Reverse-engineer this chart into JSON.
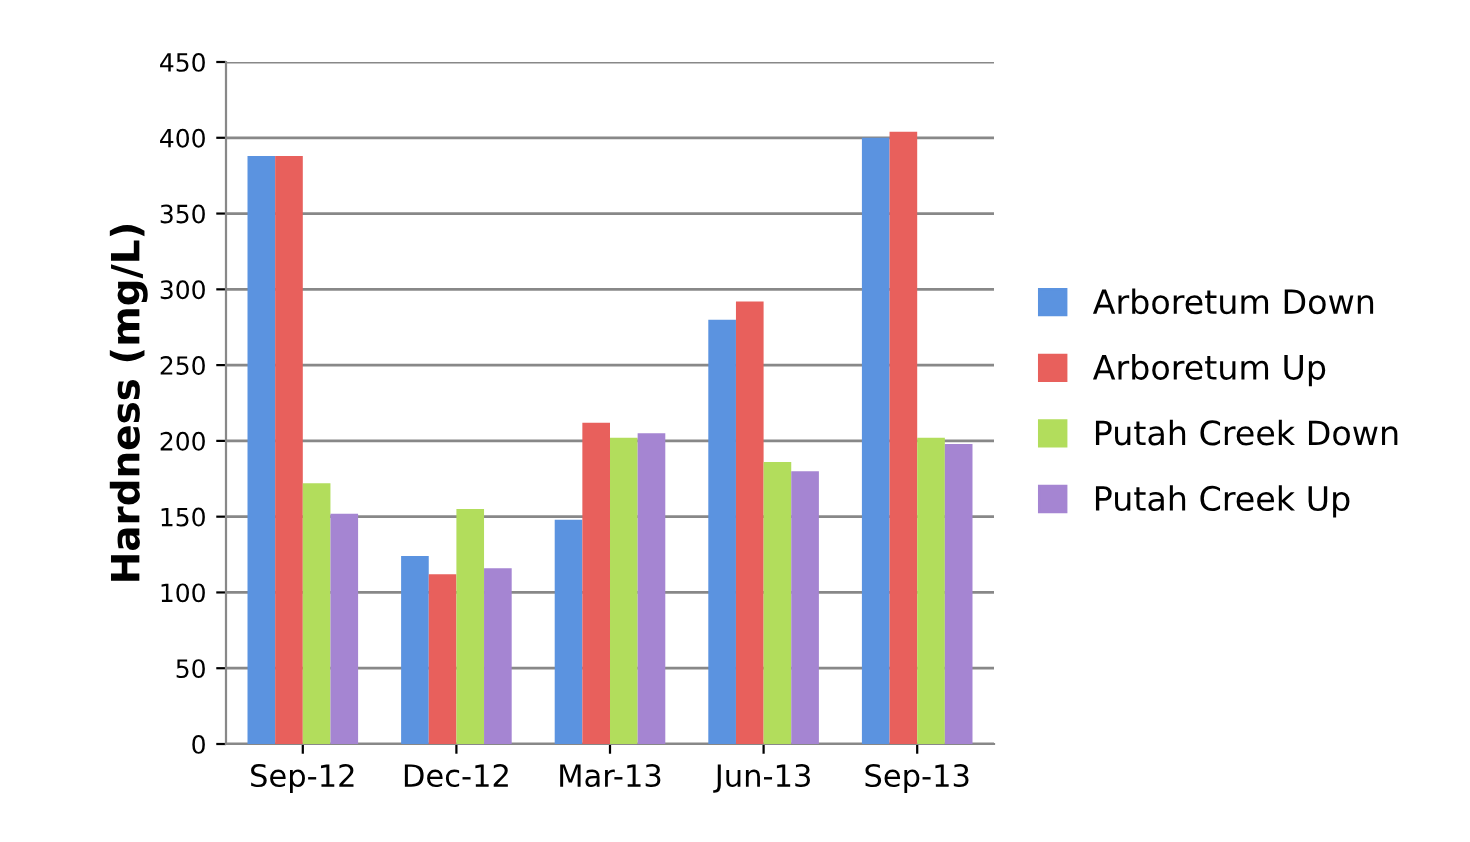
{
  "chart_data": {
    "type": "bar",
    "ylabel": "Hardness (mg/L)",
    "categories": [
      "Sep-12",
      "Dec-12",
      "Mar-13",
      "Jun-13",
      "Sep-13"
    ],
    "series": [
      {
        "name": "Arboretum Down",
        "color": "#5b93e0",
        "values": [
          388,
          124,
          148,
          280,
          400
        ]
      },
      {
        "name": "Arboretum Up",
        "color": "#e8605c",
        "values": [
          388,
          112,
          212,
          292,
          404
        ]
      },
      {
        "name": "Putah Creek Down",
        "color": "#b2dd5c",
        "values": [
          172,
          155,
          202,
          186,
          202
        ]
      },
      {
        "name": "Putah Creek Up",
        "color": "#a585d2",
        "values": [
          152,
          116,
          205,
          180,
          198
        ]
      }
    ],
    "ylim": [
      0,
      450
    ],
    "yticks": [
      0,
      50,
      100,
      150,
      200,
      250,
      300,
      350,
      400,
      450
    ],
    "grid": "y",
    "legend": "right"
  }
}
